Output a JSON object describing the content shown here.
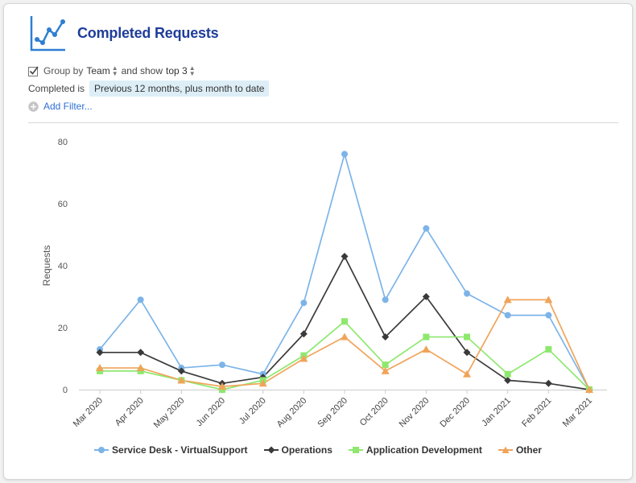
{
  "header": {
    "title": "Completed Requests",
    "icon": "line-chart-icon"
  },
  "controls": {
    "group_by_label": "Group by",
    "group_by_value": "Team",
    "and_show_label": "and show",
    "top_value": "top 3",
    "completed_label": "Completed is",
    "completed_value": "Previous 12 months, plus month to date",
    "add_filter": "Add Filter..."
  },
  "colors": {
    "title": "#1f3d99",
    "service_desk": "#7cb4e8",
    "operations": "#3a3a3a",
    "app_dev": "#8ee86e",
    "other": "#f0a45a",
    "link": "#2d6fd6"
  },
  "chart_data": {
    "type": "line",
    "ylabel": "Requests",
    "xlabel": "",
    "ylim": [
      0,
      80
    ],
    "yticks": [
      0,
      20,
      40,
      60,
      80
    ],
    "grid": false,
    "legend": "bottom-center",
    "categories": [
      "Mar 2020",
      "Apr 2020",
      "May 2020",
      "Jun 2020",
      "Jul 2020",
      "Aug 2020",
      "Sep 2020",
      "Oct 2020",
      "Nov 2020",
      "Dec 2020",
      "Jan 2021",
      "Feb 2021",
      "Mar 2021"
    ],
    "series": [
      {
        "name": "Service Desk - VirtualSupport",
        "color": "#7cb4e8",
        "marker": "circle",
        "values": [
          13,
          29,
          7,
          8,
          5,
          28,
          76,
          29,
          52,
          31,
          24,
          24,
          0
        ]
      },
      {
        "name": "Operations",
        "color": "#3a3a3a",
        "marker": "diamond",
        "values": [
          12,
          12,
          6,
          2,
          4,
          18,
          43,
          17,
          30,
          12,
          3,
          2,
          0
        ]
      },
      {
        "name": "Application Development",
        "color": "#8ee86e",
        "marker": "square",
        "values": [
          6,
          6,
          3,
          0,
          3,
          11,
          22,
          8,
          17,
          17,
          5,
          13,
          0
        ]
      },
      {
        "name": "Other",
        "color": "#f0a45a",
        "marker": "triangle",
        "values": [
          7,
          7,
          3,
          1,
          2,
          10,
          17,
          6,
          13,
          5,
          29,
          29,
          0
        ]
      }
    ]
  }
}
